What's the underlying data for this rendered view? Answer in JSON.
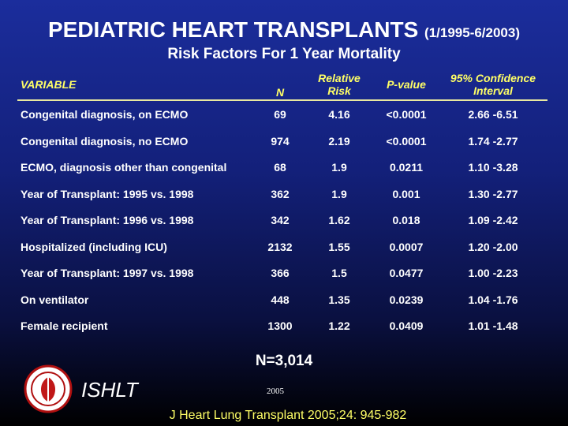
{
  "title": "PEDIATRIC HEART TRANSPLANTS",
  "title_suffix": "(1/1995-6/2003)",
  "subtitle": "Risk Factors For 1 Year Mortality",
  "table": {
    "columns": [
      "VARIABLE",
      "N",
      "Relative Risk",
      "P-value",
      "95% Confidence Interval"
    ],
    "rows": [
      [
        "Congenital diagnosis, on ECMO",
        "69",
        "4.16",
        "<0.0001",
        "2.66 -6.51"
      ],
      [
        "Congenital diagnosis, no ECMO",
        "974",
        "2.19",
        "<0.0001",
        "1.74 -2.77"
      ],
      [
        "ECMO, diagnosis other than congenital",
        "68",
        "1.9",
        "0.0211",
        "1.10 -3.28"
      ],
      [
        "Year of Transplant: 1995 vs. 1998",
        "362",
        "1.9",
        "0.001",
        "1.30 -2.77"
      ],
      [
        "Year of Transplant: 1996 vs. 1998",
        "342",
        "1.62",
        "0.018",
        "1.09 -2.42"
      ],
      [
        "Hospitalized (including ICU)",
        "2132",
        "1.55",
        "0.0007",
        "1.20 -2.00"
      ],
      [
        "Year of Transplant: 1997 vs. 1998",
        "366",
        "1.5",
        "0.0477",
        "1.00 -2.23"
      ],
      [
        "On ventilator",
        "448",
        "1.35",
        "0.0239",
        "1.04 -1.76"
      ],
      [
        "Female recipient",
        "1300",
        "1.22",
        "0.0409",
        "1.01 -1.48"
      ]
    ]
  },
  "total": "N=3,014",
  "organization": "ISHLT",
  "year": "2005",
  "citation": "J Heart Lung Transplant 2005;24: 945-982"
}
